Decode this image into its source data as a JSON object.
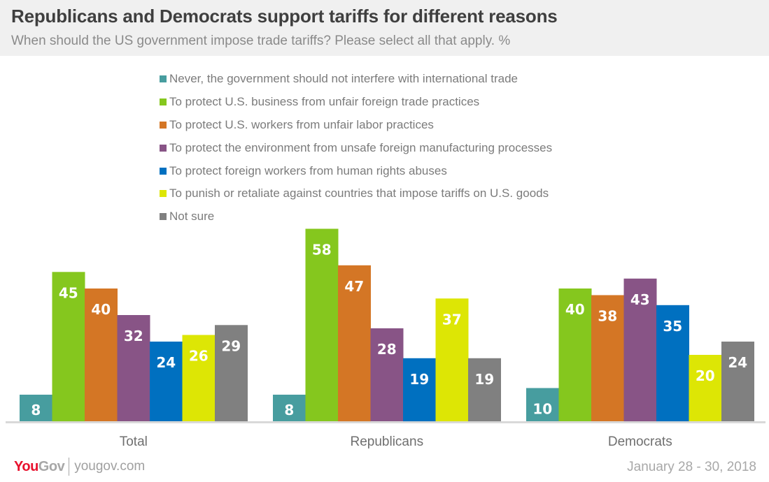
{
  "header": {
    "title": "Republicans and Democrats support tariffs for different reasons",
    "subtitle": "When should the US government impose trade tariffs? Please select all that apply. %"
  },
  "footer": {
    "logo_you": "You",
    "logo_gov": "Gov",
    "url": "yougov.com",
    "date": "January 28 - 30, 2018"
  },
  "chart_data": {
    "type": "bar",
    "title": "Republicans and Democrats support tariffs for different reasons",
    "subtitle": "When should the US government impose trade tariffs? Please select all that apply. %",
    "xlabel": "",
    "ylabel": "",
    "ylim": [
      0,
      60
    ],
    "grid": false,
    "legend_position": "top",
    "categories": [
      "Total",
      "Republicans",
      "Democrats"
    ],
    "series": [
      {
        "name": "Never, the government should not interfere with international trade",
        "color": "#479d9f",
        "values": [
          8,
          8,
          10
        ]
      },
      {
        "name": "To protect U.S. business from unfair foreign trade practices",
        "color": "#85c71e",
        "values": [
          45,
          58,
          40
        ]
      },
      {
        "name": "To protect U.S. workers from unfair labor practices",
        "color": "#d47625",
        "values": [
          40,
          47,
          38
        ]
      },
      {
        "name": "To protect the environment from unsafe foreign manufacturing processes",
        "color": "#885486",
        "values": [
          32,
          28,
          43
        ]
      },
      {
        "name": "To protect foreign workers from human rights abuses",
        "color": "#0070c0",
        "values": [
          24,
          19,
          35
        ]
      },
      {
        "name": "To punish or retaliate against countries that impose tariffs on U.S. goods",
        "color": "#dde605",
        "values": [
          26,
          37,
          20
        ]
      },
      {
        "name": "Not sure",
        "color": "#808080",
        "values": [
          29,
          19,
          24
        ]
      }
    ]
  }
}
